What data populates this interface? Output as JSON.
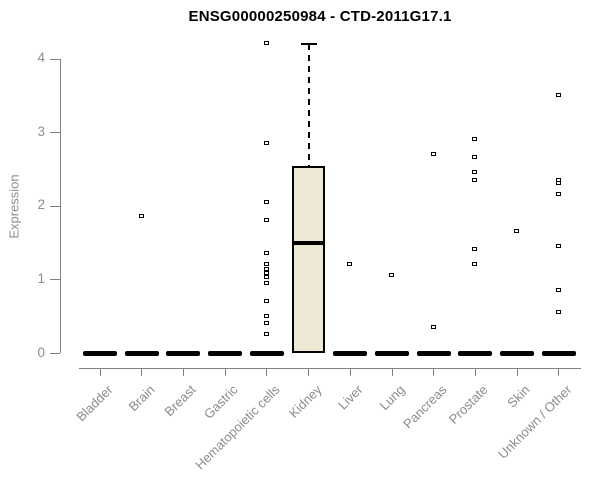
{
  "chart_data": {
    "type": "boxplot",
    "title": "ENSG00000250984 - CTD-2011G17.1",
    "ylabel": "Expression",
    "ylim": [
      0,
      4.3
    ],
    "y_ticks": [
      0,
      1,
      2,
      3,
      4
    ],
    "grid": false,
    "categories": [
      "Bladder",
      "Brain",
      "Breast",
      "Gastric",
      "Hematopoietic cells",
      "Kidney",
      "Liver",
      "Lung",
      "Pancreas",
      "Prostate",
      "Skin",
      "Unknown / Other"
    ],
    "boxes": [
      {
        "category": "Bladder",
        "q1": 0,
        "median": 0,
        "q3": 0,
        "whisker_low": 0,
        "whisker_high": 0,
        "outliers": []
      },
      {
        "category": "Brain",
        "q1": 0,
        "median": 0,
        "q3": 0,
        "whisker_low": 0,
        "whisker_high": 0,
        "outliers": [
          1.85
        ]
      },
      {
        "category": "Breast",
        "q1": 0,
        "median": 0,
        "q3": 0,
        "whisker_low": 0,
        "whisker_high": 0,
        "outliers": []
      },
      {
        "category": "Gastric",
        "q1": 0,
        "median": 0,
        "q3": 0,
        "whisker_low": 0,
        "whisker_high": 0,
        "outliers": []
      },
      {
        "category": "Hematopoietic cells",
        "q1": 0,
        "median": 0,
        "q3": 0,
        "whisker_low": 0,
        "whisker_high": 0,
        "outliers": [
          4.2,
          2.85,
          2.05,
          1.8,
          1.35,
          1.2,
          1.13,
          1.08,
          1.03,
          0.95,
          0.7,
          0.5,
          0.4,
          0.25
        ]
      },
      {
        "category": "Kidney",
        "q1": 0,
        "median": 1.5,
        "q3": 2.55,
        "whisker_low": 0,
        "whisker_high": 4.2,
        "outliers": []
      },
      {
        "category": "Liver",
        "q1": 0,
        "median": 0,
        "q3": 0,
        "whisker_low": 0,
        "whisker_high": 0,
        "outliers": [
          1.2
        ]
      },
      {
        "category": "Lung",
        "q1": 0,
        "median": 0,
        "q3": 0,
        "whisker_low": 0,
        "whisker_high": 0,
        "outliers": [
          1.05
        ]
      },
      {
        "category": "Pancreas",
        "q1": 0,
        "median": 0,
        "q3": 0,
        "whisker_low": 0,
        "whisker_high": 0,
        "outliers": [
          2.7,
          0.35
        ]
      },
      {
        "category": "Prostate",
        "q1": 0,
        "median": 0,
        "q3": 0,
        "whisker_low": 0,
        "whisker_high": 0,
        "outliers": [
          2.9,
          2.65,
          2.45,
          2.35,
          1.4,
          1.2
        ]
      },
      {
        "category": "Skin",
        "q1": 0,
        "median": 0,
        "q3": 0,
        "whisker_low": 0,
        "whisker_high": 0,
        "outliers": [
          1.65
        ]
      },
      {
        "category": "Unknown / Other",
        "q1": 0,
        "median": 0,
        "q3": 0,
        "whisker_low": 0,
        "whisker_high": 0,
        "outliers": [
          3.5,
          2.35,
          2.3,
          2.15,
          1.45,
          0.85,
          0.55
        ]
      }
    ],
    "colors": {
      "box_fill": "#EDE8D3",
      "box_stroke": "#000000",
      "axis": "#808080",
      "tick_label": "#8C8C8C",
      "title": "#000000",
      "background": "#FFFFFF"
    }
  }
}
